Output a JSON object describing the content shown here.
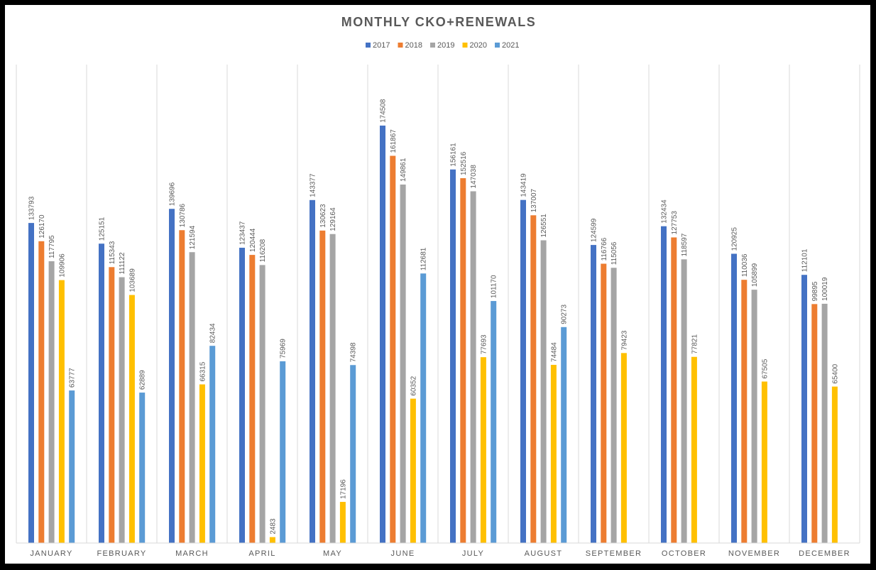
{
  "chart_data": {
    "type": "bar",
    "title": "MONTHLY CKO+RENEWALS",
    "xlabel": "",
    "ylabel": "",
    "ylim": [
      0,
      200000
    ],
    "grid": "vertical category separators only",
    "legend_position": "top",
    "categories": [
      "JANUARY",
      "FEBRUARY",
      "MARCH",
      "APRIL",
      "MAY",
      "JUNE",
      "JULY",
      "AUGUST",
      "SEPTEMBER",
      "OCTOBER",
      "NOVEMBER",
      "DECEMBER"
    ],
    "series": [
      {
        "name": "2017",
        "color": "#4472C4",
        "values": [
          133793,
          125151,
          139696,
          123437,
          143377,
          174508,
          156161,
          143419,
          124599,
          132434,
          120925,
          112101
        ]
      },
      {
        "name": "2018",
        "color": "#ED7D31",
        "values": [
          126170,
          115343,
          130786,
          120444,
          130623,
          161867,
          152516,
          137007,
          116766,
          127753,
          110036,
          99895
        ]
      },
      {
        "name": "2019",
        "color": "#A5A5A5",
        "values": [
          117795,
          111122,
          121594,
          116208,
          129164,
          149861,
          147038,
          126551,
          115056,
          118597,
          105899,
          100019
        ]
      },
      {
        "name": "2020",
        "color": "#FFC000",
        "values": [
          109906,
          103689,
          66315,
          2483,
          17196,
          60352,
          77693,
          74484,
          79423,
          77821,
          67505,
          65400
        ]
      },
      {
        "name": "2021",
        "color": "#5B9BD5",
        "values": [
          63777,
          62889,
          82434,
          75969,
          74398,
          112681,
          101170,
          90273,
          null,
          null,
          null,
          null
        ]
      }
    ]
  }
}
